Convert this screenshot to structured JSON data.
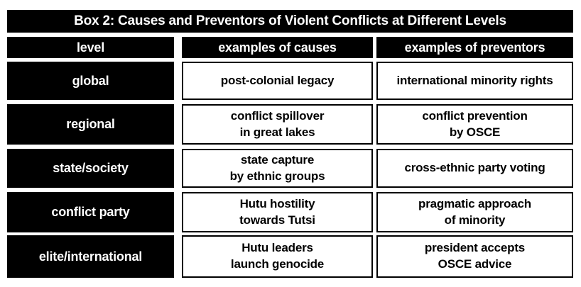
{
  "title": "Box 2: Causes and Preventors of Violent Conflicts at Different Levels",
  "table": {
    "columns": [
      "level",
      "examples of causes",
      "examples of preventors"
    ],
    "rows": [
      {
        "level": "global",
        "cause": "post-colonial legacy",
        "preventor": "international minority rights"
      },
      {
        "level": "regional",
        "cause": "conflict spillover\nin great lakes",
        "preventor": "conflict prevention\nby OSCE"
      },
      {
        "level": "state/society",
        "cause": "state capture\nby ethnic groups",
        "preventor": "cross-ethnic party voting"
      },
      {
        "level": "conflict party",
        "cause": "Hutu hostility\ntowards Tutsi",
        "preventor": "pragmatic approach\nof minority"
      },
      {
        "level": "elite/international",
        "cause": "Hutu leaders\nlaunch genocide",
        "preventor": "president accepts\nOSCE advice"
      }
    ]
  },
  "colors": {
    "bar_background": "#000000",
    "bar_text": "#ffffff",
    "cell_background": "#ffffff",
    "cell_text": "#000000",
    "cell_border": "#000000",
    "page_background": "#ffffff"
  }
}
